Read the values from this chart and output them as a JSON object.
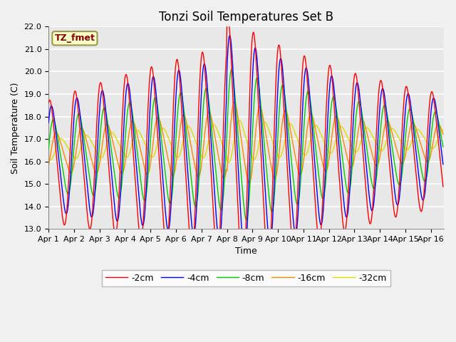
{
  "title": "Tonzi Soil Temperatures Set B",
  "xlabel": "Time",
  "ylabel": "Soil Temperature (C)",
  "ylim": [
    13.0,
    22.0
  ],
  "yticks": [
    13.0,
    14.0,
    15.0,
    16.0,
    17.0,
    18.0,
    19.0,
    20.0,
    21.0,
    22.0
  ],
  "xtick_labels": [
    "Apr 1",
    "Apr 2",
    "Apr 3",
    "Apr 4",
    "Apr 5",
    "Apr 6",
    "Apr 7",
    "Apr 8",
    "Apr 9",
    "Apr 10",
    "Apr 11",
    "Apr 12",
    "Apr 13",
    "Apr 14",
    "Apr 15",
    "Apr 16"
  ],
  "legend_label": "TZ_fmet",
  "series_labels": [
    "-2cm",
    "-4cm",
    "-8cm",
    "-16cm",
    "-32cm"
  ],
  "series_colors": [
    "#ff0000",
    "#0000ff",
    "#00cc00",
    "#ff8800",
    "#dddd00"
  ],
  "bg_color": "#d8d8d8",
  "plot_bg_color": "#e0e0e0",
  "title_fontsize": 12,
  "axis_fontsize": 9,
  "tick_fontsize": 8,
  "legend_fontsize": 9,
  "annotation_facecolor": "#ffffcc",
  "annotation_edgecolor": "#999944",
  "annotation_textcolor": "#880000"
}
